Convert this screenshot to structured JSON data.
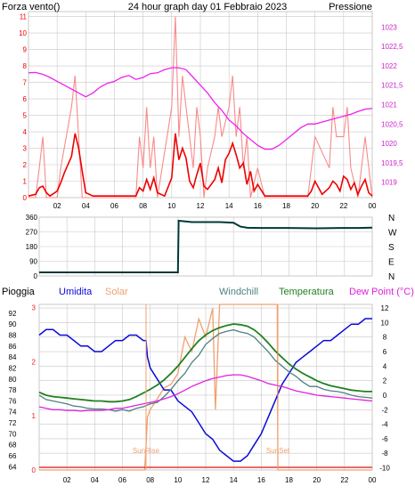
{
  "colors": {
    "background": "#ffffff",
    "plot_bg": "#ffffff",
    "grid": "#c8c8c8",
    "wind": "#ee0000",
    "gust": "#f88a8a",
    "pressure": "#ee22ee",
    "pressure_label": "#cc22cc",
    "title": "#eeee22",
    "direction": "#003838",
    "humidity": "#0a0ad8",
    "solar": "#f0a070",
    "windchill": "#508080",
    "temperature": "#208020",
    "dewpoint": "#e020e0",
    "rain": "#ee2020"
  },
  "chart_data": [
    {
      "type": "line",
      "title": "24 hour graph day   01 Febbraio 2023",
      "left_label": "Forza vento()",
      "right_label": "Pressione",
      "x_ticks": [
        "02",
        "04",
        "06",
        "08",
        "10",
        "12",
        "14",
        "16",
        "18",
        "20",
        "22",
        "00"
      ],
      "y_left_ticks": [
        "0",
        "1",
        "2",
        "3",
        "4",
        "5",
        "6",
        "7",
        "8",
        "9",
        "10",
        "11"
      ],
      "y_left_range": [
        0,
        11.3
      ],
      "y_right_ticks": [
        "1019",
        "1019,5",
        "1020",
        "1020,5",
        "1021",
        "1021,5",
        "1022",
        "1022,5",
        "1023"
      ],
      "y_right_range": [
        1018.6,
        1023.4
      ],
      "series": [
        {
          "key": "gust",
          "x": [
            0.0,
            0.5,
            0.75,
            1.0,
            1.25,
            2.0,
            2.25,
            3.0,
            3.25,
            3.5,
            3.75,
            4.0,
            7.5,
            7.75,
            8.0,
            8.25,
            8.5,
            8.75,
            9.0,
            10.0,
            10.25,
            10.5,
            10.75,
            11.0,
            11.25,
            11.5,
            11.75,
            12.0,
            12.25,
            12.5,
            13.0,
            13.25,
            13.5,
            14.0,
            14.25,
            14.5,
            14.75,
            15.0,
            15.25,
            15.5,
            16.0,
            16.5,
            17.0,
            19.5,
            19.75,
            20.0,
            21.0,
            21.25,
            21.5,
            22.0,
            22.25,
            22.5,
            23.0,
            23.25,
            23.5,
            24.0
          ],
          "y": [
            0,
            0,
            1.8,
            3.7,
            0,
            0,
            1.8,
            5.5,
            7.4,
            3.7,
            0,
            0,
            0,
            3.7,
            1.8,
            5.5,
            1.8,
            3.7,
            0,
            5.5,
            11,
            3.7,
            7.4,
            5.5,
            3.7,
            1.8,
            5.5,
            3.7,
            0,
            1.8,
            3.7,
            5.5,
            3.7,
            5.5,
            7.4,
            3.7,
            5.5,
            1.8,
            3.7,
            0,
            1.8,
            0,
            0,
            0,
            1.8,
            3.7,
            1.8,
            5.5,
            3.7,
            3.7,
            5.5,
            1.8,
            0,
            1.8,
            3.7,
            0
          ]
        },
        {
          "key": "wind",
          "x": [
            0.0,
            0.5,
            0.75,
            1.0,
            1.25,
            1.5,
            2.0,
            2.25,
            2.5,
            3.0,
            3.25,
            3.5,
            3.75,
            4.0,
            4.5,
            7.5,
            7.75,
            8.0,
            8.25,
            8.5,
            8.75,
            9.0,
            9.5,
            10.0,
            10.25,
            10.5,
            10.75,
            11.0,
            11.25,
            11.5,
            11.75,
            12.0,
            12.25,
            12.5,
            13.0,
            13.25,
            13.5,
            13.75,
            14.0,
            14.25,
            14.5,
            14.75,
            15.0,
            15.25,
            15.5,
            15.75,
            16.0,
            16.5,
            17.0,
            19.5,
            19.75,
            20.0,
            20.5,
            21.0,
            21.25,
            21.5,
            21.75,
            22.0,
            22.25,
            22.5,
            22.75,
            23.0,
            23.25,
            23.5,
            23.75,
            24.0
          ],
          "y": [
            0.1,
            0.2,
            0.6,
            0.7,
            0.3,
            0.1,
            0.4,
            0.9,
            1.5,
            2.5,
            3.9,
            3.0,
            1.6,
            0.3,
            0.1,
            0.1,
            0.6,
            0.4,
            1.1,
            0.5,
            1.2,
            0.3,
            0.1,
            1.2,
            3.9,
            2.3,
            3.0,
            2.4,
            1.0,
            0.6,
            1.4,
            2.1,
            0.7,
            0.5,
            1.1,
            1.8,
            0.9,
            2.3,
            2.7,
            3.3,
            2.6,
            1.8,
            2.1,
            0.8,
            1.6,
            0.4,
            0.8,
            0.1,
            0.1,
            0.1,
            0.4,
            1.0,
            0.2,
            0.6,
            1.0,
            0.8,
            0.4,
            1.3,
            1.1,
            0.5,
            0.9,
            0.2,
            0.7,
            1.1,
            0.3,
            0.1
          ]
        },
        {
          "key": "pressure",
          "x": [
            0.0,
            0.5,
            1.0,
            1.5,
            2.0,
            2.5,
            3.0,
            3.5,
            4.0,
            4.5,
            5.0,
            5.5,
            6.0,
            6.5,
            7.0,
            7.5,
            8.0,
            8.5,
            9.0,
            9.5,
            10.0,
            10.5,
            11.0,
            11.5,
            12.0,
            12.5,
            13.0,
            13.5,
            14.0,
            14.5,
            15.0,
            15.5,
            16.0,
            16.5,
            17.0,
            17.5,
            18.0,
            18.5,
            19.0,
            19.5,
            20.0,
            20.5,
            21.0,
            21.5,
            22.0,
            22.5,
            23.0,
            23.5,
            24.0
          ],
          "y": [
            1021.82,
            1021.83,
            1021.78,
            1021.7,
            1021.6,
            1021.5,
            1021.4,
            1021.3,
            1021.2,
            1021.3,
            1021.45,
            1021.55,
            1021.6,
            1021.7,
            1021.75,
            1021.65,
            1021.7,
            1021.8,
            1021.82,
            1021.9,
            1021.95,
            1021.95,
            1021.9,
            1021.7,
            1021.5,
            1021.3,
            1021.05,
            1020.85,
            1020.6,
            1020.45,
            1020.25,
            1020.1,
            1019.95,
            1019.85,
            1019.85,
            1019.95,
            1020.1,
            1020.25,
            1020.4,
            1020.5,
            1020.5,
            1020.55,
            1020.6,
            1020.65,
            1020.7,
            1020.75,
            1020.82,
            1020.88,
            1020.9
          ]
        }
      ]
    },
    {
      "type": "line",
      "y_labels": [
        "N",
        "W",
        "S",
        "E",
        "N"
      ],
      "y_ticks": [
        "360",
        "270",
        "180",
        "90",
        "0"
      ],
      "y_range": [
        0,
        360
      ],
      "series": [
        {
          "key": "direction",
          "x": [
            0.0,
            9.9,
            10.0,
            10.05,
            11.0,
            13.0,
            14.0,
            14.5,
            15.0,
            16.0,
            18.0,
            20.0,
            22.0,
            23.0,
            24.0
          ],
          "y": [
            22,
            22,
            22,
            338,
            330,
            330,
            326,
            302,
            295,
            294,
            294,
            292,
            294,
            294,
            296
          ]
        }
      ]
    },
    {
      "type": "line",
      "left_label": "Pioggia",
      "legend": [
        "Umidita",
        "Solar",
        "Windchill",
        "Temperatura",
        "Dew Point (°C)"
      ],
      "humidity_ticks": [
        "64",
        "66",
        "68",
        "70",
        "72",
        "74",
        "76",
        "78",
        "80",
        "82",
        "84",
        "86",
        "88",
        "90",
        "92"
      ],
      "humidity_range": [
        63.4,
        93.6
      ],
      "rain_ticks": [
        "0",
        "1",
        "2",
        "3"
      ],
      "rain_range": [
        0,
        3.06
      ],
      "temp_ticks": [
        "-10",
        "-8",
        "-6",
        "-4",
        "-2",
        "0",
        "2",
        "4",
        "6",
        "8",
        "10",
        "12"
      ],
      "temp_range": [
        -10.3,
        12.5
      ],
      "annotations": [
        "SunRise",
        "SunSet"
      ],
      "sunrise_hour": 7.7,
      "sunset_hour": 17.2,
      "series": [
        {
          "key": "solar",
          "x": [
            0.0,
            7.6,
            7.7,
            7.8,
            8.0,
            8.5,
            9.0,
            9.5,
            10.0,
            10.5,
            11.0,
            11.5,
            12.0,
            12.5,
            12.7,
            13.0,
            14.0,
            15.0,
            16.0,
            17.0,
            17.15,
            17.2,
            24.0
          ],
          "y": [
            -10.3,
            -10.3,
            -7.0,
            -3.0,
            -2.0,
            -0.5,
            1.0,
            1.5,
            3.0,
            8.0,
            6.0,
            10.5,
            8.0,
            12.0,
            -2.0,
            12.5,
            12.5,
            12.5,
            12.5,
            12.5,
            12.5,
            -10.3,
            -10.3
          ]
        },
        {
          "key": "humidity",
          "x": [
            0.0,
            0.5,
            1.0,
            1.5,
            2.0,
            2.5,
            3.0,
            3.5,
            4.0,
            4.5,
            5.0,
            5.5,
            6.0,
            6.5,
            7.0,
            7.5,
            7.7,
            7.8,
            8.0,
            8.5,
            9.0,
            9.5,
            10.0,
            10.5,
            11.0,
            11.5,
            12.0,
            12.5,
            13.0,
            13.5,
            14.0,
            14.5,
            15.0,
            15.5,
            16.0,
            16.5,
            17.0,
            17.5,
            18.0,
            18.5,
            19.0,
            19.5,
            20.0,
            20.5,
            21.0,
            21.5,
            22.0,
            22.5,
            23.0,
            23.5,
            24.0
          ],
          "y": [
            88,
            89,
            89,
            88,
            88,
            87,
            86,
            86,
            85,
            85,
            86,
            87,
            87,
            88,
            88,
            87,
            87,
            84,
            82,
            80,
            78,
            78,
            76,
            75,
            74,
            72,
            70,
            69,
            67,
            66,
            65,
            65,
            66,
            68,
            70,
            73,
            76,
            79,
            81,
            83,
            84,
            85,
            86,
            87,
            87,
            88,
            89,
            90,
            90,
            91,
            91
          ]
        },
        {
          "key": "windchill",
          "x": [
            0.0,
            0.5,
            1.0,
            1.5,
            2.0,
            2.5,
            3.0,
            3.5,
            4.0,
            4.5,
            5.0,
            5.5,
            6.0,
            6.5,
            7.0,
            7.5,
            8.0,
            8.5,
            9.0,
            9.5,
            10.0,
            10.5,
            11.0,
            11.5,
            12.0,
            12.5,
            13.0,
            13.5,
            14.0,
            14.5,
            15.0,
            15.5,
            16.0,
            16.5,
            17.0,
            17.5,
            18.0,
            18.5,
            19.0,
            19.5,
            20.0,
            20.5,
            21.0,
            21.5,
            22.0,
            22.5,
            23.0,
            23.5,
            24.0
          ],
          "y": [
            0.0,
            -0.6,
            -0.8,
            -1.0,
            -1.2,
            -1.5,
            -1.6,
            -1.8,
            -1.9,
            -1.9,
            -2.0,
            -2.2,
            -2.0,
            -2.2,
            -1.8,
            -1.6,
            -1.2,
            -1.0,
            -0.2,
            0.8,
            2.0,
            3.0,
            4.5,
            5.5,
            7.0,
            7.8,
            8.5,
            8.8,
            9.0,
            8.7,
            8.5,
            8.0,
            7.0,
            6.0,
            4.8,
            4.0,
            3.2,
            2.6,
            1.8,
            1.2,
            1.2,
            0.8,
            0.6,
            0.5,
            0.3,
            0.0,
            -0.2,
            -0.3,
            -0.4
          ]
        },
        {
          "key": "temperature",
          "x": [
            0.0,
            0.5,
            1.0,
            1.5,
            2.0,
            2.5,
            3.0,
            3.5,
            4.0,
            4.5,
            5.0,
            5.5,
            6.0,
            6.5,
            7.0,
            7.5,
            8.0,
            8.5,
            9.0,
            9.5,
            10.0,
            10.5,
            11.0,
            11.5,
            12.0,
            12.5,
            13.0,
            13.5,
            14.0,
            14.5,
            15.0,
            15.5,
            16.0,
            16.5,
            17.0,
            17.5,
            18.0,
            18.5,
            19.0,
            19.5,
            20.0,
            20.5,
            21.0,
            21.5,
            22.0,
            22.5,
            23.0,
            23.5,
            24.0
          ],
          "y": [
            0.4,
            0.0,
            -0.2,
            -0.3,
            -0.4,
            -0.5,
            -0.6,
            -0.7,
            -0.8,
            -0.8,
            -0.9,
            -0.9,
            -0.8,
            -0.6,
            -0.2,
            0.3,
            0.8,
            1.4,
            2.1,
            3.0,
            4.0,
            5.2,
            6.4,
            7.5,
            8.3,
            8.9,
            9.3,
            9.6,
            9.8,
            9.7,
            9.5,
            9.0,
            8.2,
            7.2,
            6.1,
            5.2,
            4.3,
            3.6,
            3.0,
            2.5,
            2.0,
            1.6,
            1.3,
            1.1,
            0.9,
            0.7,
            0.6,
            0.5,
            0.5
          ]
        },
        {
          "key": "dewpoint",
          "x": [
            0.0,
            0.5,
            1.0,
            1.5,
            2.0,
            2.5,
            3.0,
            3.5,
            4.0,
            4.5,
            5.0,
            5.5,
            6.0,
            6.5,
            7.0,
            7.5,
            8.0,
            8.5,
            9.0,
            9.5,
            10.0,
            10.5,
            11.0,
            11.5,
            12.0,
            12.5,
            13.0,
            13.5,
            14.0,
            14.5,
            15.0,
            15.5,
            16.0,
            16.5,
            17.0,
            17.5,
            18.0,
            18.5,
            19.0,
            19.5,
            20.0,
            20.5,
            21.0,
            21.5,
            22.0,
            22.5,
            23.0,
            23.5,
            24.0
          ],
          "y": [
            -1.6,
            -1.8,
            -2.0,
            -2.0,
            -2.1,
            -2.1,
            -2.2,
            -2.1,
            -2.1,
            -2.1,
            -2.0,
            -1.8,
            -1.8,
            -1.6,
            -1.4,
            -1.2,
            -1.0,
            -0.8,
            -0.5,
            -0.2,
            0.2,
            0.7,
            1.2,
            1.6,
            2.0,
            2.3,
            2.5,
            2.7,
            2.8,
            2.8,
            2.6,
            2.3,
            2.0,
            1.6,
            1.4,
            1.2,
            0.9,
            0.6,
            0.4,
            0.2,
            0.0,
            -0.1,
            -0.2,
            -0.3,
            -0.4,
            -0.5,
            -0.6,
            -0.7,
            -0.8
          ]
        },
        {
          "key": "rain",
          "x": [
            0.0,
            24.0
          ],
          "y": [
            0.05,
            0.05
          ]
        }
      ]
    }
  ]
}
